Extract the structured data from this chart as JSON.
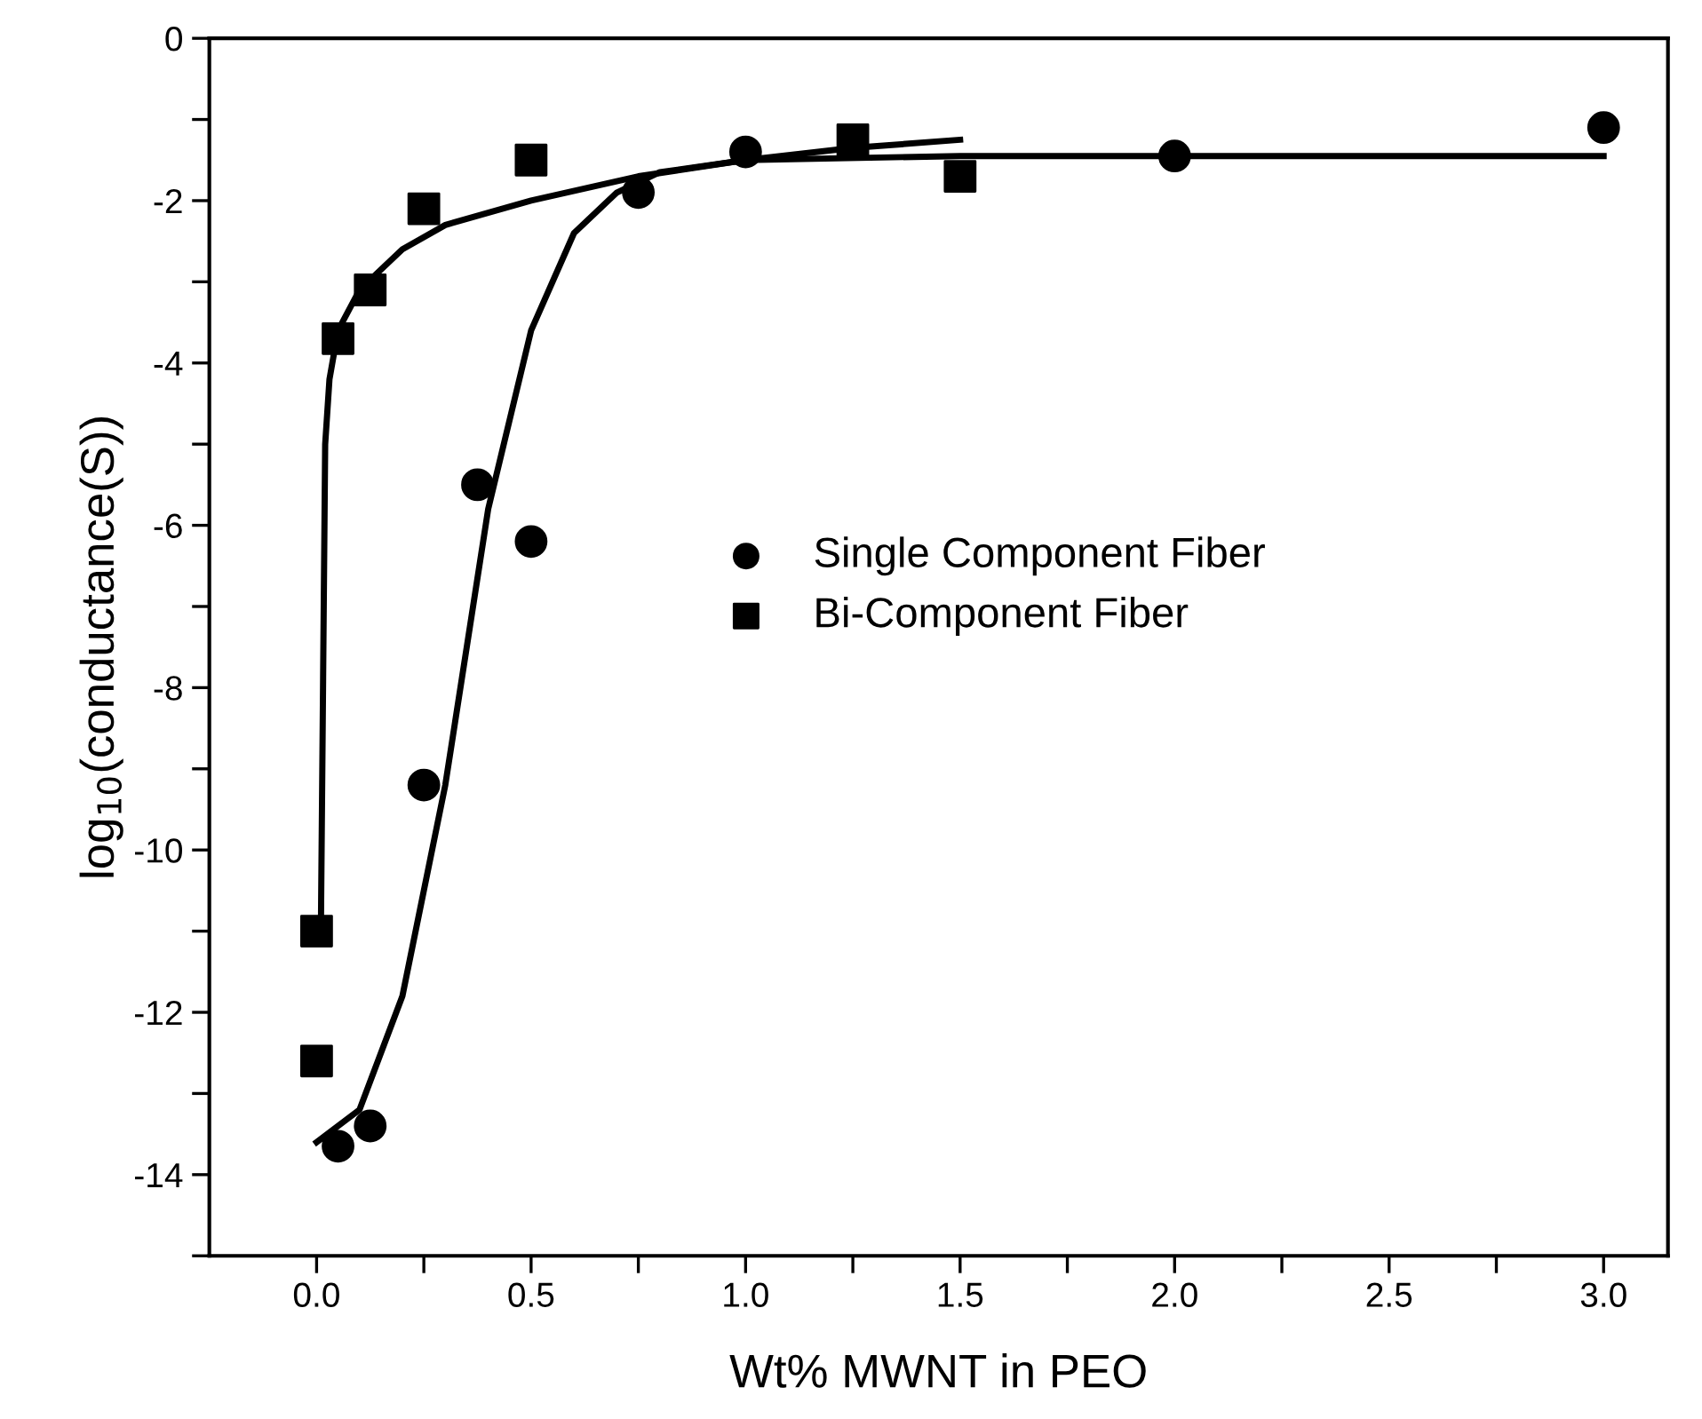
{
  "chart_data": {
    "type": "scatter",
    "xlabel": "Wt% MWNT in PEO",
    "ylabel": "log$_{10}$(conductance(S))",
    "xlim": [
      -0.25,
      3.15
    ],
    "ylim": [
      -15,
      0
    ],
    "xticks": [
      {
        "value": 0,
        "label": "0.0"
      },
      {
        "value": 0.25,
        "label": null
      },
      {
        "value": 0.5,
        "label": "0.5"
      },
      {
        "value": 0.75,
        "label": null
      },
      {
        "value": 1,
        "label": "1.0"
      },
      {
        "value": 1.25,
        "label": null
      },
      {
        "value": 1.5,
        "label": "1.5"
      },
      {
        "value": 1.75,
        "label": null
      },
      {
        "value": 2,
        "label": "2.0"
      },
      {
        "value": 2.25,
        "label": null
      },
      {
        "value": 2.5,
        "label": "2.5"
      },
      {
        "value": 2.75,
        "label": null
      },
      {
        "value": 3,
        "label": "3.0"
      }
    ],
    "yticks": [
      {
        "value": -15,
        "label": null
      },
      -14,
      {
        "value": -13,
        "label": null
      },
      -12,
      {
        "value": -11,
        "label": null
      },
      -10,
      {
        "value": -9,
        "label": null
      },
      -8,
      {
        "value": -7,
        "label": null
      },
      -6,
      {
        "value": -5,
        "label": null
      },
      -4,
      {
        "value": -3,
        "label": null
      },
      -2,
      {
        "value": -1,
        "label": null
      },
      0
    ],
    "grid": false,
    "legend": "center right",
    "series": [
      {
        "name": "Single Component Fiber",
        "marker": "circle",
        "color": "#000000",
        "x": [
          0.05,
          0.125,
          0.25,
          0.375,
          0.5,
          0.75,
          1.0,
          2.0,
          3.0
        ],
        "values": [
          -13.65,
          -13.4,
          -9.2,
          -5.5,
          -6.2,
          -1.9,
          -1.4,
          -1.45,
          -1.1
        ]
      },
      {
        "name": "Bi-Component Fiber",
        "marker": "square",
        "color": "#000000",
        "x": [
          0,
          0,
          0.05,
          0.125,
          0.25,
          0.5,
          1.25,
          1.5
        ],
        "values": [
          -11,
          -12.6,
          -3.7,
          -3.1,
          -2.1,
          -1.5,
          -1.25,
          -1.7
        ]
      },
      {
        "type": "line",
        "color": "#000000",
        "line_style": "solid",
        "x": [
          0,
          0.1,
          0.2,
          0.3,
          0.35,
          0.4,
          0.5,
          0.6,
          0.7,
          0.8,
          1.0,
          1.5,
          3.0
        ],
        "values": [
          -13.6,
          -13.2,
          -11.8,
          -9.2,
          -7.5,
          -5.8,
          -3.6,
          -2.4,
          -1.9,
          -1.65,
          -1.5,
          -1.45,
          -1.45
        ]
      },
      {
        "type": "line",
        "color": "#000000",
        "line_style": "solid",
        "x": [
          0.01,
          0.015,
          0.02,
          0.03,
          0.05,
          0.1,
          0.2,
          0.3,
          0.5,
          0.75,
          1.0,
          1.25,
          1.5
        ],
        "values": [
          -11,
          -8,
          -5,
          -4.2,
          -3.6,
          -3.1,
          -2.6,
          -2.3,
          -2.0,
          -1.7,
          -1.5,
          -1.35,
          -1.25
        ]
      }
    ]
  }
}
